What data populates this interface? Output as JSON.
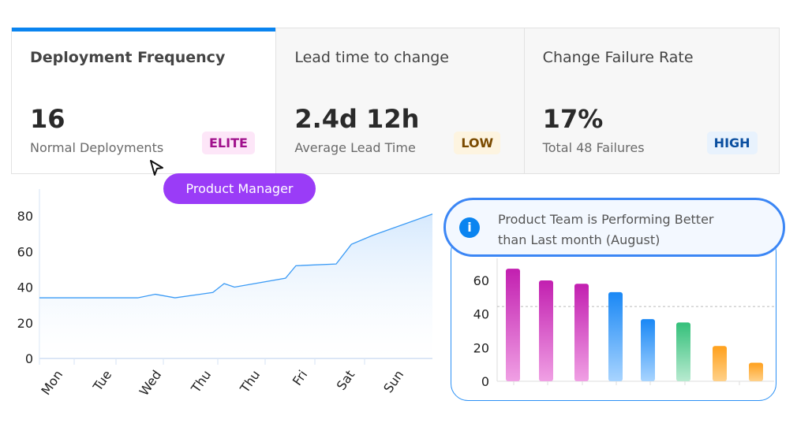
{
  "cards": [
    {
      "title": "Deployment Frequency",
      "value": "16",
      "subtitle": "Normal Deployments",
      "badge": "ELITE",
      "badge_color": "#a0108c",
      "badge_bg": "#fde6f8",
      "active": true
    },
    {
      "title": "Lead time to change",
      "value": "2.4d 12h",
      "subtitle": "Average Lead Time",
      "badge": "LOW",
      "badge_color": "#7a4a00",
      "badge_bg": "#fdf4e0",
      "active": false
    },
    {
      "title": "Change Failure Rate",
      "value": "17%",
      "subtitle": "Total 48 Failures",
      "badge": "HIGH",
      "badge_color": "#0b4fa0",
      "badge_bg": "#e8f2fd",
      "active": false
    }
  ],
  "tooltip": {
    "label": "Product Manager",
    "color": "#9a3cf7"
  },
  "callout": {
    "icon": "info-icon",
    "line1": "Product Team is Performing Better",
    "line2": "than Last month (August)"
  },
  "chart_data": [
    {
      "type": "area",
      "categories": [
        "Mon",
        "Tue",
        "Wed",
        "Thu",
        "Thu",
        "Fri",
        "Sat",
        "Sun"
      ],
      "x": [
        0,
        2.0,
        2.36,
        2.76,
        3.53,
        3.76,
        3.97,
        5.01,
        5.22,
        6.04,
        6.35,
        6.78,
        8
      ],
      "values": [
        34,
        34,
        36,
        34,
        37,
        42,
        40,
        45,
        52,
        53,
        64,
        69,
        81
      ],
      "ylim": [
        0,
        90
      ],
      "yticks": [
        0,
        20,
        40,
        60,
        80
      ],
      "line_color": "#3a9af5",
      "grid": false
    },
    {
      "type": "bar",
      "values": [
        67,
        60,
        58,
        53,
        37,
        35,
        21,
        11
      ],
      "colors": [
        "#c21fb0",
        "#c21fb0",
        "#c21fb0",
        "#1a88f5",
        "#1a88f5",
        "#34c07a",
        "#ffa01c",
        "#ffa01c"
      ],
      "colors_light": [
        "#f0a0e4",
        "#f0a0e4",
        "#f0a0e4",
        "#a8d4ff",
        "#a8d4ff",
        "#b8ead0",
        "#ffd18a",
        "#ffd18a"
      ],
      "reference_line": 44.5,
      "ylim": [
        0,
        70
      ],
      "yticks": [
        0,
        20,
        40,
        60
      ],
      "grid": false
    }
  ]
}
